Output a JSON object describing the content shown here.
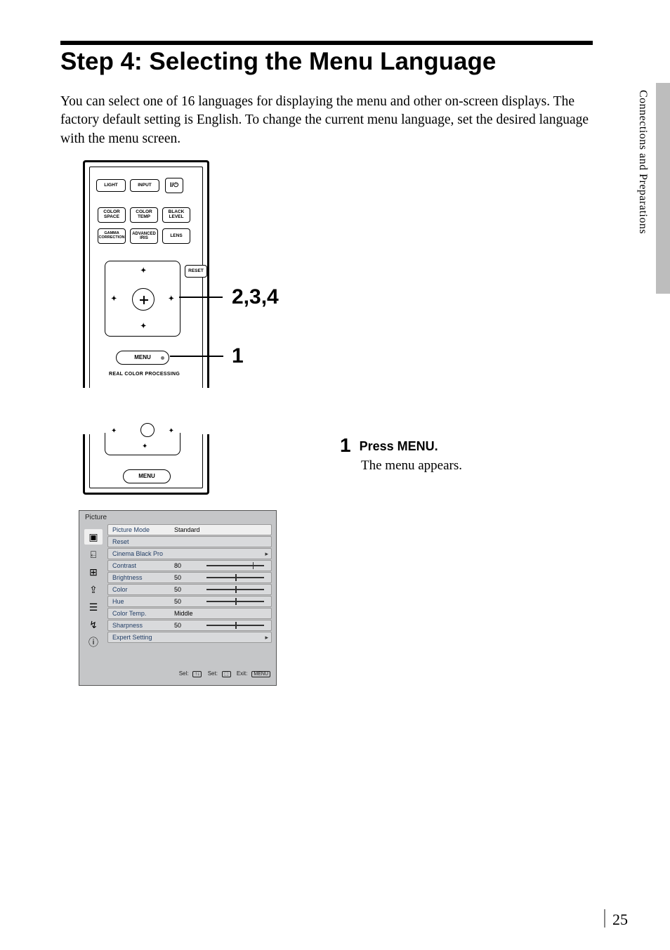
{
  "colors": {
    "text": "#000000",
    "background": "#ffffff",
    "side_tab": "#bdbdbd",
    "osd_bg": "#c5c6c8",
    "osd_row": "#d9dadc",
    "osd_row_sel": "#efefef",
    "osd_key": "#223e66"
  },
  "typography": {
    "body_family": "Times New Roman",
    "ui_family": "Arial",
    "title_size_pt": 26,
    "body_size_pt": 14
  },
  "side_label": "Connections and Preparations",
  "page_number": "25",
  "title": "Step 4: Selecting the Menu Language",
  "intro": "You can select one of 16 languages for displaying the menu and other on-screen displays. The factory default setting is English. To change the current menu language, set the desired language with the menu screen.",
  "remote": {
    "row1": {
      "light": "LIGHT",
      "input": "INPUT",
      "power": "I/ ⏻"
    },
    "row2": {
      "color_space": "COLOR\nSPACE",
      "color_temp": "COLOR\nTEMP",
      "black_level": "BLACK\nLEVEL"
    },
    "row3": {
      "gamma": "GAMMA\nCORRECTION",
      "iris": "ADVANCED\nIRIS",
      "lens": "LENS"
    },
    "reset": "RESET",
    "menu": "MENU",
    "rcp": "REAL COLOR PROCESSING"
  },
  "callouts": {
    "dpad": "2,3,4",
    "menu": "1"
  },
  "remote2": {
    "menu": "MENU"
  },
  "osd": {
    "title": "Picture",
    "rows": [
      {
        "k": "Picture Mode",
        "v": "Standard",
        "selected": true
      },
      {
        "k": "Reset"
      },
      {
        "k": "Cinema Black Pro",
        "chev": true
      },
      {
        "k": "Contrast",
        "v": "80",
        "slider": 80
      },
      {
        "k": "Brightness",
        "v": "50",
        "slider": 50
      },
      {
        "k": "Color",
        "v": "50",
        "slider": 50
      },
      {
        "k": "Hue",
        "v": "50",
        "slider": 50
      },
      {
        "k": "Color Temp.",
        "v": "Middle"
      },
      {
        "k": "Sharpness",
        "v": "50",
        "slider": 50
      },
      {
        "k": "Expert Setting",
        "chev": true
      }
    ],
    "footer": {
      "sel": "Sel:",
      "set": "Set:",
      "exit": "Exit:",
      "sel_keys": "↑↓",
      "set_key": "⬚",
      "exit_key": "MENU"
    },
    "side_icons": [
      "▣",
      "⊞",
      "⊞",
      "⚙",
      "☰",
      "⤵",
      "ⓘ"
    ]
  },
  "step1": {
    "num": "1",
    "head": "Press MENU.",
    "body": "The menu appears."
  }
}
